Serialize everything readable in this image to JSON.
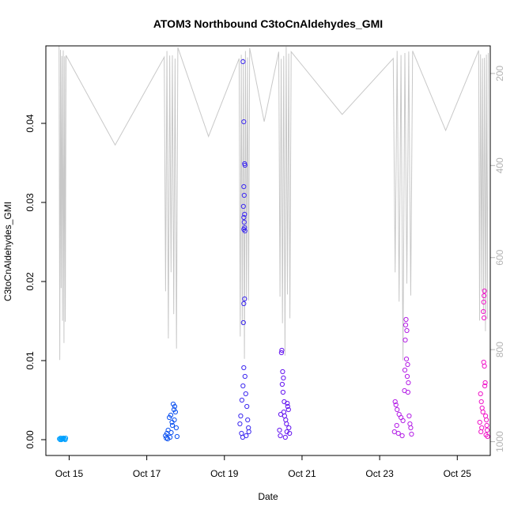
{
  "chart_data": {
    "type": "scatter",
    "title": "ATOM3 Northbound C3toCnAldehydes_GMI",
    "xlabel": "Date",
    "ylabel": "C3toCnAldehydes_GMI",
    "x_ticks": [
      "Oct 15",
      "Oct 17",
      "Oct 19",
      "Oct 21",
      "Oct 23",
      "Oct 25"
    ],
    "xlim_days": [
      14.4,
      25.85
    ],
    "x_tick_days": [
      15,
      17,
      19,
      21,
      23,
      25
    ],
    "ylim": [
      -0.002,
      0.0498
    ],
    "y_ticks": [
      0.0,
      0.01,
      0.02,
      0.03,
      0.04
    ],
    "y_tick_labels": [
      "0.00",
      "0.01",
      "0.02",
      "0.03",
      "0.04"
    ],
    "y2_ticks": [
      200,
      400,
      600,
      800,
      1000
    ],
    "y2_tick_labels": [
      "200",
      "400",
      "600",
      "800",
      "1000"
    ],
    "y2_range": [
      1030,
      140
    ],
    "y2_label": "",
    "marker": "open-circle",
    "profile_color": "#c8c8c8",
    "series": [
      {
        "color": "#00a0ff",
        "day_start": 14.74,
        "day_end": 14.92,
        "points": [
          [
            14.75,
            0.0001
          ],
          [
            14.78,
            0.0002
          ],
          [
            14.8,
            0.0
          ],
          [
            14.82,
            0.0001
          ],
          [
            14.85,
            0.0002
          ],
          [
            14.88,
            0.0001
          ],
          [
            14.9,
            0.0
          ],
          [
            14.77,
            0.0
          ],
          [
            14.84,
            0.0001
          ],
          [
            14.91,
            0.0002
          ]
        ]
      },
      {
        "color": "#0a50f0",
        "day_start": 17.45,
        "day_end": 17.8,
        "points": [
          [
            17.48,
            0.0005
          ],
          [
            17.52,
            0.0008
          ],
          [
            17.55,
            0.0012
          ],
          [
            17.58,
            0.0028
          ],
          [
            17.62,
            0.0031
          ],
          [
            17.65,
            0.0022
          ],
          [
            17.68,
            0.0045
          ],
          [
            17.7,
            0.0038
          ],
          [
            17.72,
            0.0042
          ],
          [
            17.74,
            0.0035
          ],
          [
            17.76,
            0.0015
          ],
          [
            17.5,
            0.0002
          ],
          [
            17.6,
            0.0003
          ],
          [
            17.66,
            0.0018
          ],
          [
            17.78,
            0.0004
          ],
          [
            17.54,
            0.0001
          ],
          [
            17.71,
            0.0025
          ],
          [
            17.63,
            0.0009
          ]
        ]
      },
      {
        "color": "#3c28f0",
        "day_start": 19.38,
        "day_end": 19.65,
        "points": [
          [
            19.48,
            0.0478
          ],
          [
            19.5,
            0.0402
          ],
          [
            19.52,
            0.0349
          ],
          [
            19.53,
            0.0347
          ],
          [
            19.5,
            0.032
          ],
          [
            19.51,
            0.0309
          ],
          [
            19.49,
            0.0295
          ],
          [
            19.52,
            0.0285
          ],
          [
            19.5,
            0.0281
          ],
          [
            19.51,
            0.0275
          ],
          [
            19.52,
            0.0268
          ],
          [
            19.5,
            0.0266
          ],
          [
            19.53,
            0.0264
          ],
          [
            19.52,
            0.0178
          ],
          [
            19.5,
            0.0172
          ],
          [
            19.49,
            0.0148
          ],
          [
            19.5,
            0.0091
          ],
          [
            19.53,
            0.008
          ],
          [
            19.48,
            0.0068
          ],
          [
            19.55,
            0.0058
          ],
          [
            19.45,
            0.005
          ],
          [
            19.58,
            0.0042
          ],
          [
            19.42,
            0.003
          ],
          [
            19.4,
            0.002
          ],
          [
            19.6,
            0.0025
          ],
          [
            19.62,
            0.0015
          ],
          [
            19.44,
            0.0008
          ],
          [
            19.56,
            0.0005
          ],
          [
            19.63,
            0.001
          ],
          [
            19.47,
            0.0003
          ]
        ]
      },
      {
        "color": "#6414f0",
        "day_start": 20.4,
        "day_end": 20.72,
        "points": [
          [
            20.48,
            0.0113
          ],
          [
            20.47,
            0.011
          ],
          [
            20.5,
            0.0086
          ],
          [
            20.52,
            0.0078
          ],
          [
            20.49,
            0.007
          ],
          [
            20.51,
            0.006
          ],
          [
            20.54,
            0.0048
          ],
          [
            20.62,
            0.0046
          ],
          [
            20.63,
            0.0042
          ],
          [
            20.65,
            0.0038
          ],
          [
            20.45,
            0.0032
          ],
          [
            20.55,
            0.003
          ],
          [
            20.58,
            0.0025
          ],
          [
            20.6,
            0.002
          ],
          [
            20.66,
            0.0015
          ],
          [
            20.42,
            0.0012
          ],
          [
            20.68,
            0.0008
          ],
          [
            20.44,
            0.0005
          ],
          [
            20.57,
            0.0003
          ],
          [
            20.53,
            0.0035
          ],
          [
            20.61,
            0.001
          ]
        ]
      },
      {
        "color": "#b41ee6",
        "day_start": 23.35,
        "day_end": 23.85,
        "points": [
          [
            23.68,
            0.0152
          ],
          [
            23.67,
            0.0145
          ],
          [
            23.7,
            0.0138
          ],
          [
            23.66,
            0.0126
          ],
          [
            23.69,
            0.0102
          ],
          [
            23.72,
            0.0095
          ],
          [
            23.65,
            0.0088
          ],
          [
            23.71,
            0.008
          ],
          [
            23.74,
            0.0072
          ],
          [
            23.64,
            0.0062
          ],
          [
            23.73,
            0.006
          ],
          [
            23.4,
            0.0048
          ],
          [
            23.42,
            0.0044
          ],
          [
            23.45,
            0.0038
          ],
          [
            23.5,
            0.0032
          ],
          [
            23.55,
            0.0028
          ],
          [
            23.6,
            0.0024
          ],
          [
            23.76,
            0.003
          ],
          [
            23.78,
            0.002
          ],
          [
            23.8,
            0.0015
          ],
          [
            23.38,
            0.001
          ],
          [
            23.48,
            0.0008
          ],
          [
            23.58,
            0.0005
          ],
          [
            23.82,
            0.0007
          ],
          [
            23.44,
            0.0018
          ]
        ]
      },
      {
        "color": "#f014c8",
        "day_start": 25.55,
        "day_end": 25.8,
        "points": [
          [
            25.7,
            0.0188
          ],
          [
            25.69,
            0.0182
          ],
          [
            25.68,
            0.0174
          ],
          [
            25.67,
            0.0162
          ],
          [
            25.69,
            0.0154
          ],
          [
            25.68,
            0.0098
          ],
          [
            25.7,
            0.0093
          ],
          [
            25.72,
            0.0072
          ],
          [
            25.71,
            0.0068
          ],
          [
            25.6,
            0.0058
          ],
          [
            25.62,
            0.0048
          ],
          [
            25.64,
            0.004
          ],
          [
            25.66,
            0.0035
          ],
          [
            25.73,
            0.003
          ],
          [
            25.75,
            0.0025
          ],
          [
            25.58,
            0.0022
          ],
          [
            25.76,
            0.0018
          ],
          [
            25.77,
            0.0012
          ],
          [
            25.61,
            0.001
          ],
          [
            25.74,
            0.0006
          ],
          [
            25.63,
            0.0015
          ],
          [
            25.78,
            0.0004
          ]
        ]
      }
    ]
  }
}
